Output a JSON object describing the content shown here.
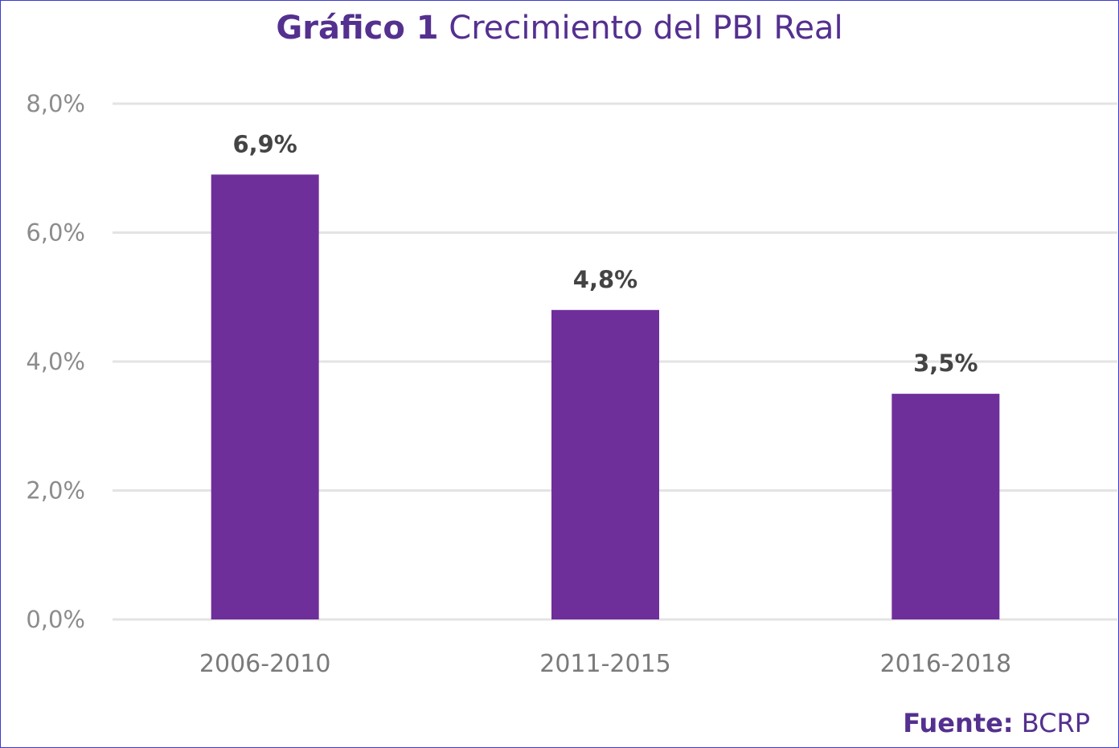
{
  "title": {
    "bold": "Gráfico 1",
    "rest": "Crecimiento del PBI Real"
  },
  "source": {
    "label": "Fuente:",
    "value": "BCRP"
  },
  "colors": {
    "bar": "#6f2f9b",
    "title": "#54308f",
    "grid": "#e3e3e3"
  },
  "chart_data": {
    "type": "bar",
    "title": "Gráfico 1 Crecimiento del PBI Real",
    "xlabel": "",
    "ylabel": "",
    "categories": [
      "2006-2010",
      "2011-2015",
      "2016-2018"
    ],
    "values": [
      6.9,
      4.8,
      3.5
    ],
    "data_labels": [
      "6,9%",
      "4,8%",
      "3,5%"
    ],
    "ylim": [
      0,
      8
    ],
    "yticks": [
      0,
      2,
      4,
      6,
      8
    ],
    "ytick_labels": [
      "0,0%",
      "2,0%",
      "4,0%",
      "6,0%",
      "8,0%"
    ],
    "grid": true,
    "legend": "none"
  }
}
